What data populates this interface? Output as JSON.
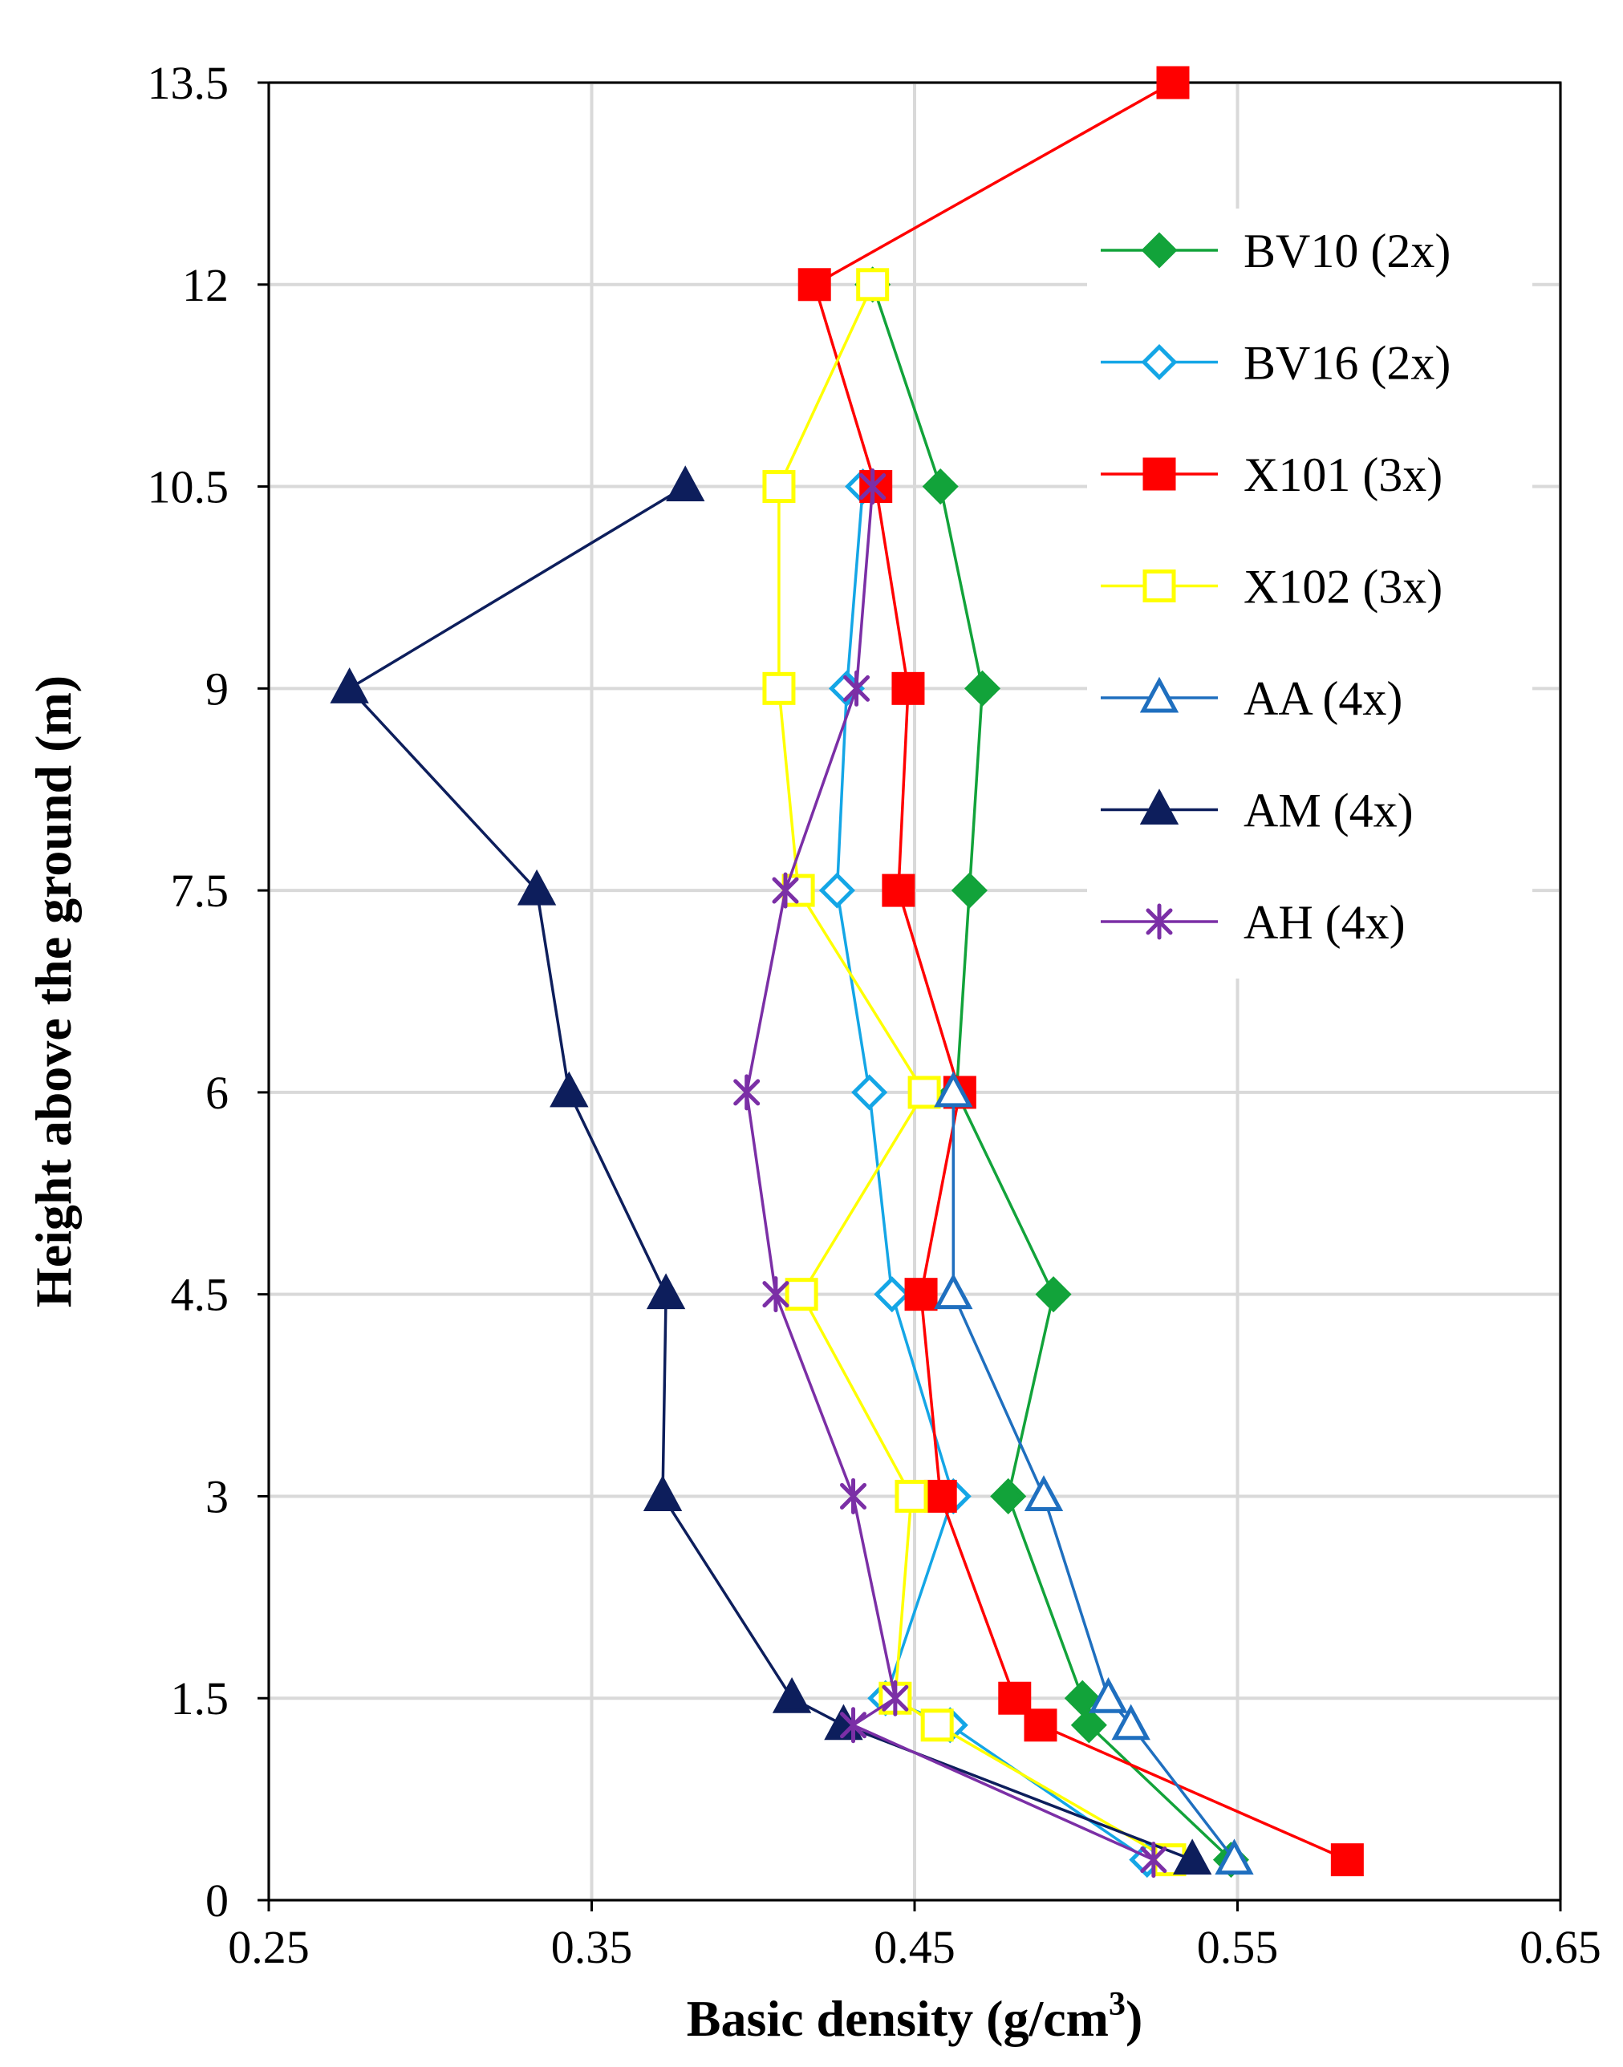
{
  "chart_data": {
    "type": "line",
    "title": "",
    "xlabel": "Basic density (g/cm",
    "xlabel_superscript": "3",
    "xlabel_suffix": ")",
    "ylabel": "Height above the ground (m)",
    "xlim": [
      0.25,
      0.65
    ],
    "ylim": [
      0,
      13.5
    ],
    "x_ticks": [
      "0.25",
      "0.35",
      "0.45",
      "0.55",
      "0.65"
    ],
    "y_ticks": [
      "0",
      "1.5",
      "3",
      "4.5",
      "6",
      "7.5",
      "9",
      "10.5",
      "12",
      "13.5"
    ],
    "grid": true,
    "legend_position": "top-right",
    "series": [
      {
        "name": "BV10 (2x)",
        "color": "#12A33A",
        "marker": "diamond",
        "filled": true,
        "points": [
          [
            0.548,
            0.3
          ],
          [
            0.504,
            1.3
          ],
          [
            0.502,
            1.5
          ],
          [
            0.479,
            3
          ],
          [
            0.493,
            4.5
          ],
          [
            0.463,
            6
          ],
          [
            0.467,
            7.5
          ],
          [
            0.471,
            9
          ],
          [
            0.458,
            10.5
          ],
          [
            0.437,
            12
          ]
        ]
      },
      {
        "name": "BV16 (2x)",
        "color": "#14A6E6",
        "marker": "diamond",
        "filled": false,
        "points": [
          [
            0.522,
            0.3
          ],
          [
            0.461,
            1.3
          ],
          [
            0.441,
            1.5
          ],
          [
            0.462,
            3
          ],
          [
            0.443,
            4.5
          ],
          [
            0.436,
            6
          ],
          [
            0.426,
            7.5
          ],
          [
            0.429,
            9
          ],
          [
            0.434,
            10.5
          ]
        ]
      },
      {
        "name": "X101 (3x)",
        "color": "#FF0000",
        "marker": "square",
        "filled": true,
        "points": [
          [
            0.584,
            0.3
          ],
          [
            0.489,
            1.3
          ],
          [
            0.481,
            1.5
          ],
          [
            0.458,
            3
          ],
          [
            0.452,
            4.5
          ],
          [
            0.464,
            6
          ],
          [
            0.445,
            7.5
          ],
          [
            0.448,
            9
          ],
          [
            0.438,
            10.5
          ],
          [
            0.419,
            12
          ],
          [
            0.53,
            13.5
          ]
        ]
      },
      {
        "name": "X102 (3x)",
        "color": "#FFFF00",
        "marker": "square",
        "filled": false,
        "points": [
          [
            0.529,
            0.3
          ],
          [
            0.457,
            1.3
          ],
          [
            0.444,
            1.5
          ],
          [
            0.449,
            3
          ],
          [
            0.415,
            4.5
          ],
          [
            0.453,
            6
          ],
          [
            0.414,
            7.5
          ],
          [
            0.408,
            9
          ],
          [
            0.408,
            10.5
          ],
          [
            0.437,
            12
          ]
        ]
      },
      {
        "name": "AA (4x)",
        "color": "#1F6FBF",
        "marker": "triangle",
        "filled": false,
        "points": [
          [
            0.549,
            0.3
          ],
          [
            0.517,
            1.3
          ],
          [
            0.51,
            1.5
          ],
          [
            0.49,
            3
          ],
          [
            0.462,
            4.5
          ],
          [
            0.462,
            6
          ]
        ]
      },
      {
        "name": "AM (4x)",
        "color": "#0D1E5C",
        "marker": "triangle",
        "filled": true,
        "points": [
          [
            0.536,
            0.3
          ],
          [
            0.428,
            1.3
          ],
          [
            0.412,
            1.5
          ],
          [
            0.372,
            3
          ],
          [
            0.373,
            4.5
          ],
          [
            0.343,
            6
          ],
          [
            0.333,
            7.5
          ],
          [
            0.275,
            9
          ],
          [
            0.379,
            10.5
          ]
        ]
      },
      {
        "name": "AH (4x)",
        "color": "#7B2FA6",
        "marker": "asterisk",
        "filled": false,
        "points": [
          [
            0.524,
            0.3
          ],
          [
            0.431,
            1.3
          ],
          [
            0.444,
            1.5
          ],
          [
            0.431,
            3
          ],
          [
            0.407,
            4.5
          ],
          [
            0.398,
            6
          ],
          [
            0.41,
            7.5
          ],
          [
            0.432,
            9
          ],
          [
            0.437,
            10.5
          ]
        ]
      }
    ]
  }
}
